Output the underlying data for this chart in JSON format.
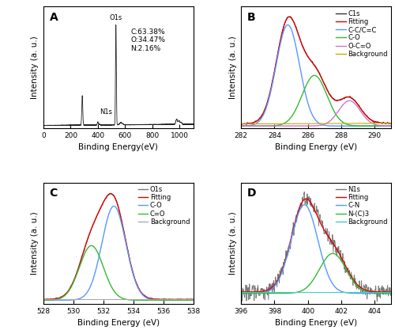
{
  "fig_width": 5.0,
  "fig_height": 4.22,
  "dpi": 100,
  "panel_label_fontsize": 10,
  "axis_label_fontsize": 7.5,
  "tick_fontsize": 6.5,
  "legend_fontsize": 6.0,
  "annotation_fontsize": 6.5,
  "A": {
    "xlabel": "Binding Energy(eV)",
    "ylabel": "Intensity (a. u.)",
    "xlim": [
      0,
      1100
    ],
    "annotation": "C:63.38%\nO:34.47%\nN:2.16%"
  },
  "B": {
    "xlabel": "Binding Energy (eV)",
    "ylabel": "Intensity (a. u.)",
    "xlim": [
      282,
      291
    ],
    "legend": [
      "C1s",
      "Fitting",
      "C-C/C=C",
      "C-O",
      "O-C=O",
      "Background"
    ],
    "legend_colors": [
      "#333333",
      "#dd0000",
      "#5599ff",
      "#33bb33",
      "#cc77cc",
      "#ccaa00"
    ]
  },
  "C": {
    "xlabel": "Binding Energy (eV)",
    "ylabel": "Intensity (a. u.)",
    "xlim": [
      528,
      538
    ],
    "legend": [
      "O1s",
      "Fitting",
      "C-O",
      "C=O",
      "Background"
    ],
    "legend_colors": [
      "#777777",
      "#dd0000",
      "#5599ff",
      "#33bb33",
      "#aaaaaa"
    ]
  },
  "D": {
    "xlabel": "Binding Energy (eV)",
    "ylabel": "Intensity (a. u.)",
    "xlim": [
      396,
      405
    ],
    "legend": [
      "N1s",
      "Fitting",
      "C-N",
      "N-(C)3",
      "Background"
    ],
    "legend_colors": [
      "#777777",
      "#dd0000",
      "#5599ff",
      "#33bb33",
      "#44cccc"
    ]
  }
}
